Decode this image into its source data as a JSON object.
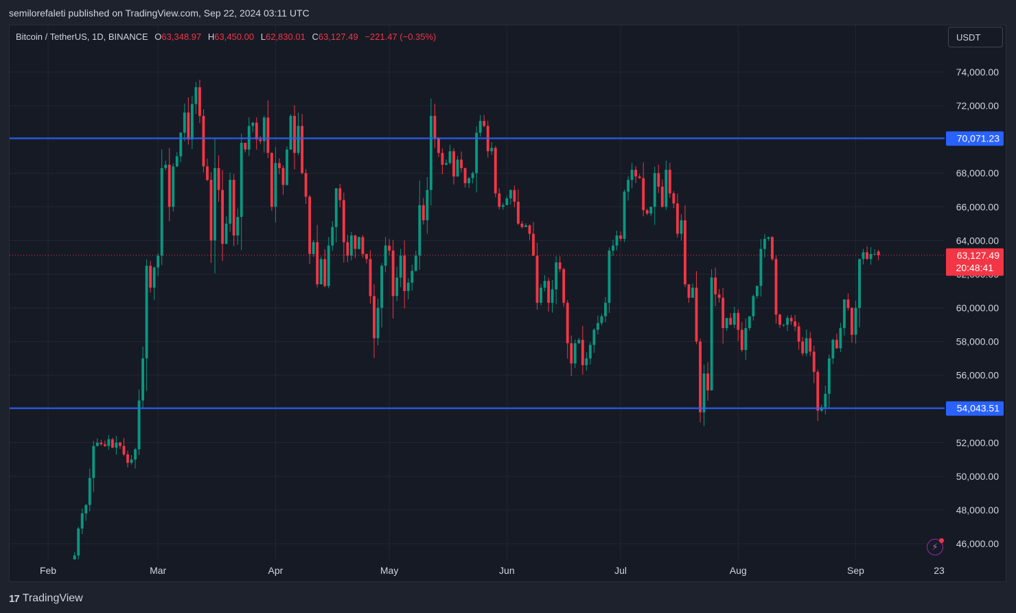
{
  "header": {
    "published": "semilorefaleti published on TradingView.com, Sep 22, 2024 03:11 UTC"
  },
  "legend": {
    "symbol": "Bitcoin / TetherUS, 1D, BINANCE",
    "o_label": "O",
    "o_value": "63,348.97",
    "h_label": "H",
    "h_value": "63,450.00",
    "l_label": "L",
    "l_value": "62,830.01",
    "c_label": "C",
    "c_value": "63,127.49",
    "change": "−221.47 (−0.35%)"
  },
  "currency": "USDT",
  "footer": {
    "logo": "17",
    "brand": "TradingView"
  },
  "colors": {
    "up": "#089981",
    "down": "#f23645",
    "level_line": "#2962ff",
    "background": "#161a25",
    "grid": "#232734",
    "axis_text": "#d1d4dc"
  },
  "chart_data": {
    "type": "candlestick",
    "title": "",
    "xlabel": "",
    "ylabel": "",
    "ylim": [
      45000,
      75000
    ],
    "y_ticks": [
      "46,000.00",
      "48,000.00",
      "50,000.00",
      "52,000.00",
      "54,000.00",
      "56,000.00",
      "58,000.00",
      "60,000.00",
      "62,000.00",
      "64,000.00",
      "66,000.00",
      "68,000.00",
      "70,000.00",
      "72,000.00",
      "74,000.00"
    ],
    "x_labels": [
      {
        "date": "2024-02-01",
        "label": "Feb"
      },
      {
        "date": "2024-03-01",
        "label": "Mar"
      },
      {
        "date": "2024-04-01",
        "label": "Apr"
      },
      {
        "date": "2024-05-01",
        "label": "May"
      },
      {
        "date": "2024-06-01",
        "label": "Jun"
      },
      {
        "date": "2024-07-01",
        "label": "Jul"
      },
      {
        "date": "2024-08-01",
        "label": "Aug"
      },
      {
        "date": "2024-09-01",
        "label": "Sep"
      },
      {
        "date": "2024-09-23",
        "label": "23"
      }
    ],
    "horizontal_lines": [
      {
        "value": 70071.23,
        "label": "70,071.23"
      },
      {
        "value": 54043.51,
        "label": "54,043.51"
      }
    ],
    "last_price": {
      "value": 63127.49,
      "label": "63,127.49",
      "countdown": "20:48:41"
    },
    "series": [
      {
        "dates_start": "2024-02-08",
        "closes": [
          45300,
          46900,
          47800,
          48300,
          49900,
          51800,
          52000,
          51900,
          51800,
          52200,
          51700,
          52000,
          51800,
          51300,
          50800,
          51000,
          51600,
          54500,
          57000,
          62500,
          61200,
          62400,
          63100,
          68300,
          68500,
          66000,
          68400,
          69000,
          70400,
          71600,
          70000,
          72100,
          73100,
          71400,
          68400,
          67600,
          64000,
          68300,
          67000,
          63800,
          65000,
          67600,
          64300,
          65400,
          69800,
          69400,
          70800,
          71000,
          70000,
          69900,
          71300,
          69200,
          66000,
          68600,
          68300,
          67300,
          69400,
          71400,
          69200,
          70800,
          68000,
          66600,
          63200,
          63900,
          61400,
          62900,
          61300,
          63700,
          64800,
          67100,
          66400,
          63900,
          63100,
          64300,
          63500,
          64200,
          63200,
          62900,
          60700,
          58200,
          60000,
          62500,
          63700,
          63400,
          60700,
          61800,
          63100,
          61000,
          61500,
          62200,
          63100,
          66100,
          65200,
          67000,
          71400,
          70100,
          69200,
          68500,
          68600,
          69300,
          67800,
          68800,
          68300,
          67400,
          67700,
          68000,
          70400,
          71100,
          70800,
          69300,
          69500,
          66800,
          66000,
          66100,
          66500,
          67000,
          66300,
          65000,
          64800,
          64900,
          64400,
          63100,
          60300,
          61200,
          61600,
          60300,
          61100,
          62700,
          62300,
          60300,
          57900,
          56700,
          57900,
          58100,
          56600,
          57000,
          57800,
          58700,
          59100,
          59500,
          60300,
          63400,
          63700,
          64300,
          64100,
          66900,
          67600,
          68200,
          67800,
          67700,
          65800,
          65600,
          66000,
          68000,
          67200,
          66000,
          68200,
          66800,
          66200,
          64400,
          65200,
          61400,
          60600,
          61200,
          58000,
          53800,
          56100,
          55100,
          61800,
          60800,
          60600,
          58800,
          59400,
          59000,
          59700,
          58700,
          57500,
          58800,
          59500,
          60700,
          61300,
          63500,
          64100,
          64200,
          62900,
          59600,
          59000,
          59000,
          59400,
          59200,
          58900,
          58000,
          57300,
          58200,
          57400,
          56200,
          53900,
          54100,
          54900,
          57000,
          58100,
          57600,
          58800,
          60500,
          60000,
          58400,
          60000,
          62900,
          63300,
          62900,
          63200,
          63200,
          63127
        ]
      }
    ]
  }
}
